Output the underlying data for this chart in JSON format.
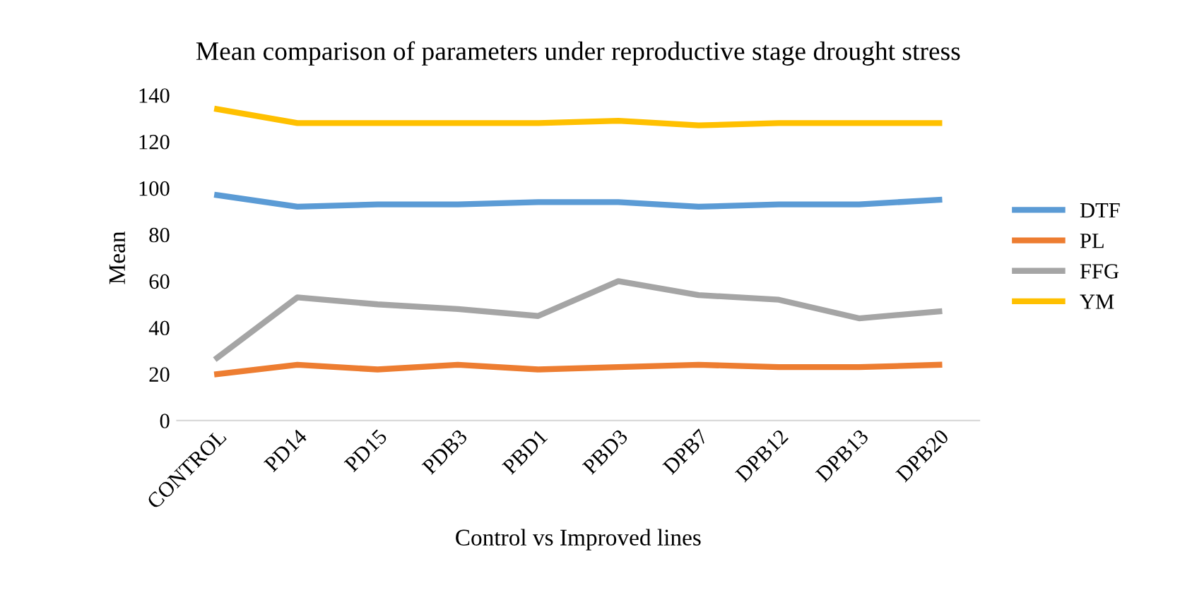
{
  "chart_data": {
    "type": "line",
    "title": "Mean comparison of parameters under reproductive stage drought stress",
    "xlabel": "Control vs Improved lines",
    "ylabel": "Mean",
    "categories": [
      "CONTROL",
      "PD14",
      "PD15",
      "PDB3",
      "PBD1",
      "PBD3",
      "DPB7",
      "DPB12",
      "DPB13",
      "DPB20"
    ],
    "series": [
      {
        "name": "DTF",
        "color": "#5b9bd5",
        "values": [
          97,
          92,
          93,
          93,
          94,
          94,
          92,
          93,
          93,
          95
        ]
      },
      {
        "name": "PL",
        "color": "#ed7d31",
        "values": [
          20,
          24,
          22,
          24,
          22,
          23,
          24,
          23,
          23,
          24
        ]
      },
      {
        "name": "FFG",
        "color": "#a5a5a5",
        "values": [
          27,
          53,
          50,
          48,
          45,
          60,
          54,
          52,
          44,
          47
        ]
      },
      {
        "name": "YM",
        "color": "#ffc000",
        "values": [
          134,
          128,
          128,
          128,
          128,
          129,
          127,
          128,
          128,
          128
        ]
      }
    ],
    "ylim": [
      0,
      140
    ],
    "yticks": [
      0,
      20,
      40,
      60,
      80,
      100,
      120,
      140
    ],
    "grid": false,
    "legend": "right",
    "marker": "none",
    "line_style": "solid"
  }
}
